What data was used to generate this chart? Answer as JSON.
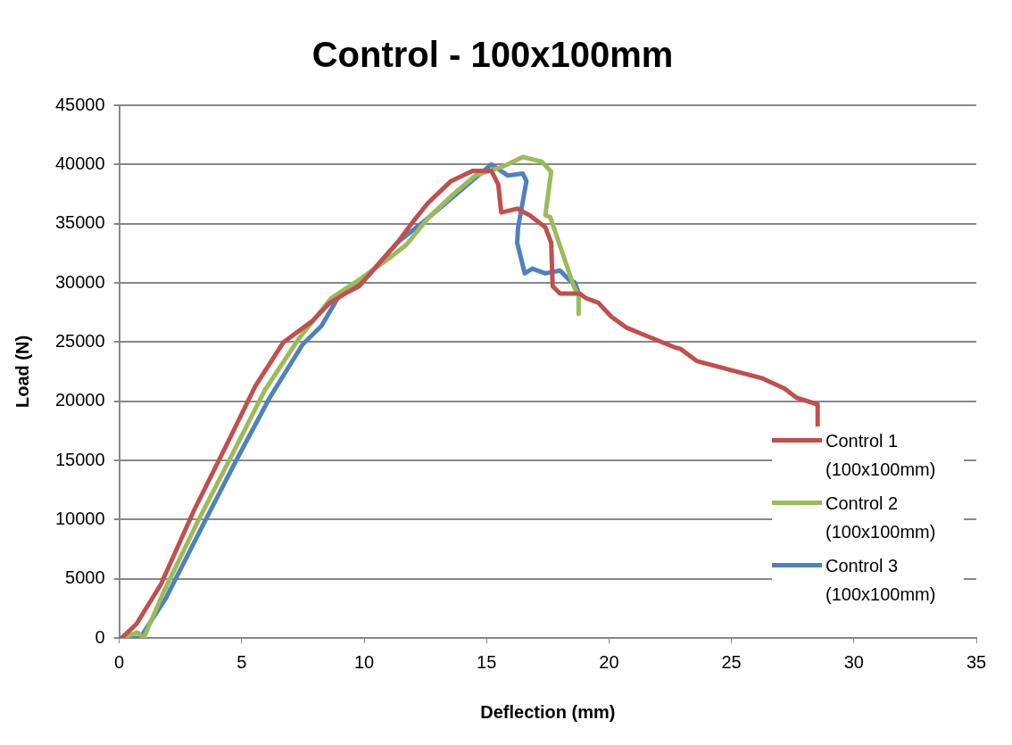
{
  "chart_data": {
    "type": "line",
    "title": "Control - 100x100mm",
    "xlabel": "Deflection (mm)",
    "ylabel": "Load (N)",
    "xlim": [
      0,
      35
    ],
    "xticks": [
      0,
      5,
      10,
      15,
      20,
      25,
      30,
      35
    ],
    "ylim": [
      0,
      45000
    ],
    "yticks": [
      0,
      5000,
      10000,
      15000,
      20000,
      25000,
      30000,
      35000,
      40000,
      45000
    ],
    "grid": "y",
    "legend": "right",
    "marker": "none",
    "line_style": "solid",
    "series": [
      {
        "name": "Control 1 (100x100mm)",
        "color": "#c0504d",
        "x": [
          0.1,
          0.7,
          1.7,
          3.05,
          4.4,
          5.56,
          6.7,
          7.87,
          8.6,
          9.22,
          9.8,
          11.35,
          12.0,
          12.6,
          13.55,
          14.43,
          15.2,
          15.48,
          15.6,
          16.25,
          16.75,
          17.4,
          17.64,
          17.7,
          18.0,
          18.8,
          19.07,
          19.57,
          20.1,
          20.73,
          21.27,
          22.66,
          22.93,
          23.58,
          24.85,
          26.28,
          27.17,
          27.67,
          28.52,
          28.52
        ],
        "values": [
          0,
          1170,
          4520,
          10760,
          16380,
          21290,
          24960,
          26750,
          28310,
          29090,
          29720,
          33380,
          35170,
          36730,
          38600,
          39460,
          39460,
          38300,
          35950,
          36270,
          35720,
          34700,
          33380,
          29720,
          29090,
          29090,
          28700,
          28310,
          27140,
          26200,
          25740,
          24570,
          24410,
          23400,
          22700,
          21920,
          21060,
          20280,
          19730,
          17780
        ]
      },
      {
        "name": "Control 2 (100x100mm)",
        "color": "#9bbb59",
        "x": [
          0.15,
          0.73,
          1.0,
          1.78,
          3.24,
          4.6,
          5.94,
          7.3,
          8.65,
          9.8,
          10.96,
          11.73,
          12.62,
          13.66,
          14.55,
          15.7,
          16.48,
          17.25,
          17.64,
          17.4,
          17.6,
          18.56,
          18.76,
          18.76
        ],
        "values": [
          0,
          470,
          0,
          3740,
          9980,
          15440,
          20900,
          25190,
          28700,
          30260,
          31980,
          33220,
          35490,
          37510,
          39070,
          39850,
          40630,
          40240,
          39380,
          35720,
          35560,
          29720,
          28940,
          27380
        ]
      },
      {
        "name": "Control 3 (100x100mm)",
        "color": "#4f81bd",
        "x": [
          0.08,
          0.85,
          1.9,
          3.43,
          4.79,
          6.14,
          7.49,
          8.26,
          9.03,
          10.19,
          11.35,
          12.62,
          15.2,
          15.86,
          16.48,
          16.63,
          16.29,
          16.25,
          16.56,
          16.87,
          17.4,
          18.0,
          18.37,
          18.6,
          18.8
        ],
        "values": [
          0,
          0,
          3350,
          9590,
          15050,
          20280,
          24800,
          26360,
          29090,
          30650,
          33380,
          35490,
          40010,
          39070,
          39230,
          38600,
          34700,
          33380,
          30800,
          31200,
          30800,
          31040,
          30260,
          30030,
          28940
        ]
      }
    ]
  }
}
